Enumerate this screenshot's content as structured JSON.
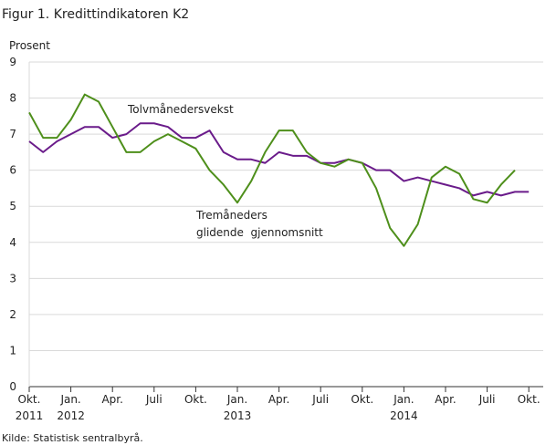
{
  "chart_data": {
    "type": "line",
    "title": "Figur 1. Kredittindikatoren K2",
    "y_label": "Prosent",
    "source": "Kilde: Statistisk sentralbyrå.",
    "categories": [
      "Okt.",
      null,
      null,
      "Jan.",
      null,
      null,
      "Apr.",
      null,
      null,
      "Juli",
      null,
      null,
      "Okt.",
      null,
      null,
      "Jan.",
      null,
      null,
      "Apr.",
      null,
      null,
      "Juli",
      null,
      null,
      "Okt.",
      null,
      null,
      "Jan.",
      null,
      null,
      "Apr.",
      null,
      null,
      "Juli",
      null,
      null,
      "Okt."
    ],
    "year_labels": [
      "2011",
      null,
      null,
      "2012",
      null,
      null,
      null,
      null,
      null,
      null,
      null,
      null,
      null,
      null,
      null,
      "2013",
      null,
      null,
      null,
      null,
      null,
      null,
      null,
      null,
      null,
      null,
      null,
      "2014",
      null,
      null,
      null,
      null,
      null,
      null,
      null,
      null,
      null
    ],
    "series": [
      {
        "name": "Tolvmånedersvekst",
        "color": "#6a1b8a",
        "values": [
          6.8,
          6.5,
          6.8,
          7.0,
          7.2,
          7.2,
          6.9,
          7.0,
          7.3,
          7.3,
          7.2,
          6.9,
          6.9,
          7.1,
          6.5,
          6.3,
          6.3,
          6.2,
          6.5,
          6.4,
          6.4,
          6.2,
          6.2,
          6.3,
          6.2,
          6.0,
          6.0,
          5.7,
          5.8,
          5.7,
          5.6,
          5.5,
          5.3,
          5.4,
          5.3,
          5.4,
          5.4
        ]
      },
      {
        "name": "Tremåneders\nglidende  gjennomsnitt",
        "color": "#4e8f1b",
        "values": [
          7.6,
          6.9,
          6.9,
          7.4,
          8.1,
          7.9,
          7.2,
          6.5,
          6.5,
          6.8,
          7.0,
          6.8,
          6.6,
          6.0,
          5.6,
          5.1,
          5.7,
          6.5,
          7.1,
          7.1,
          6.5,
          6.2,
          6.1,
          6.3,
          6.2,
          5.5,
          4.4,
          3.9,
          4.5,
          5.8,
          6.1,
          5.9,
          5.2,
          5.1,
          5.6,
          6.0,
          null
        ]
      }
    ],
    "ylim": [
      0,
      9
    ],
    "yticks": [
      0,
      1,
      2,
      3,
      4,
      5,
      6,
      7,
      8,
      9
    ],
    "grid": true
  }
}
